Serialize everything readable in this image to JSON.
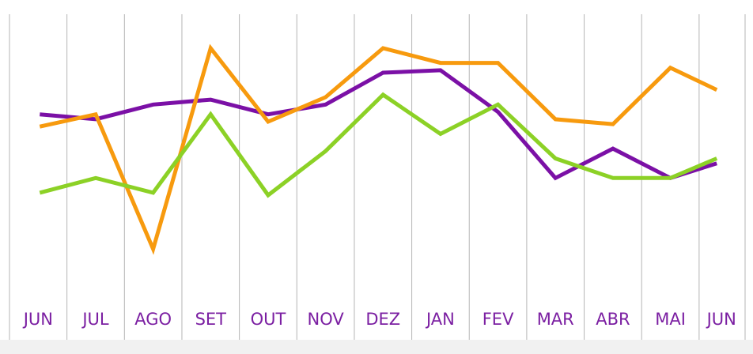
{
  "chart_data": {
    "type": "line",
    "title": "",
    "xlabel": "",
    "ylabel": "",
    "categories": [
      "JUN",
      "JUL",
      "AGO",
      "SET",
      "OUT",
      "NOV",
      "DEZ",
      "JAN",
      "FEV",
      "MAR",
      "ABR",
      "MAI",
      "JUN"
    ],
    "ylim": [
      0,
      100
    ],
    "grid": "vertical",
    "label_color": "#7b1fa2",
    "grid_color": "#b5b5b5",
    "bottom_band_color": "#f1f1f1",
    "series": [
      {
        "color": "#7b10a6",
        "points": [
          [
            0,
            63
          ],
          [
            1,
            61
          ],
          [
            2,
            67
          ],
          [
            3,
            69
          ],
          [
            4,
            63
          ],
          [
            5,
            67
          ],
          [
            6,
            80
          ],
          [
            7,
            81
          ],
          [
            8,
            64
          ],
          [
            9,
            37
          ],
          [
            10,
            49
          ],
          [
            11,
            37
          ],
          [
            12,
            43
          ]
        ]
      },
      {
        "color": "#f79a0e",
        "points": [
          [
            0,
            58
          ],
          [
            1,
            63
          ],
          [
            2,
            8
          ],
          [
            3,
            90
          ],
          [
            4,
            60
          ],
          [
            5,
            70
          ],
          [
            6,
            90
          ],
          [
            7,
            84
          ],
          [
            8,
            84
          ],
          [
            9,
            61
          ],
          [
            10,
            59
          ],
          [
            11,
            82
          ],
          [
            12,
            73
          ]
        ]
      },
      {
        "color": "#8cd126",
        "points": [
          [
            0,
            31
          ],
          [
            1,
            37
          ],
          [
            2,
            31
          ],
          [
            3,
            63
          ],
          [
            4,
            30
          ],
          [
            5,
            48
          ],
          [
            6,
            71
          ],
          [
            7,
            55
          ],
          [
            8,
            67
          ],
          [
            9,
            45
          ],
          [
            10,
            37
          ],
          [
            11,
            37
          ],
          [
            12,
            45
          ]
        ]
      }
    ]
  }
}
